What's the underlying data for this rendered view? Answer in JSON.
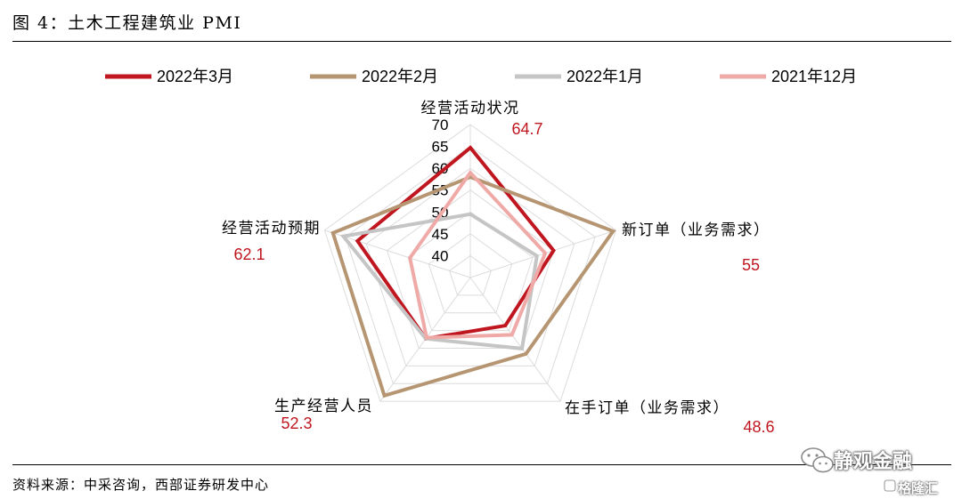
{
  "header": {
    "title": "图 4：土木工程建筑业 PMI"
  },
  "footer": {
    "source": "资料来源：中采咨询，西部证券研发中心"
  },
  "watermark": {
    "name": "静观金融",
    "brand": "格隆汇"
  },
  "chart_data": {
    "type": "radar",
    "title": "",
    "axes": [
      "经营活动状况",
      "新订单（业务需求）",
      "在手订单（业务需求）",
      "生产经营人员",
      "经营活动预期"
    ],
    "range": [
      35,
      70
    ],
    "ticks": [
      40,
      45,
      50,
      55,
      60,
      65,
      70
    ],
    "legend_position": "top",
    "grid": true,
    "series": [
      {
        "name": "2022年3月",
        "color": "#c0161f",
        "values": [
          64.7,
          55.0,
          48.6,
          52.3,
          62.1
        ]
      },
      {
        "name": "2022年2月",
        "color": "#b69672",
        "values": [
          58.0,
          69.3,
          56.6,
          68.4,
          68.0
        ]
      },
      {
        "name": "2022年1月",
        "color": "#c5c5c5",
        "values": [
          49.5,
          51.0,
          55.1,
          52.3,
          65.5
        ]
      },
      {
        "name": "2021年12月",
        "color": "#efaaa8",
        "values": [
          59.0,
          53.0,
          51.2,
          52.0,
          49.5
        ]
      }
    ],
    "annotated_values": [
      "64.7",
      "55",
      "48.6",
      "52.3",
      "62.1"
    ],
    "annotation_color": "#c0161f"
  }
}
